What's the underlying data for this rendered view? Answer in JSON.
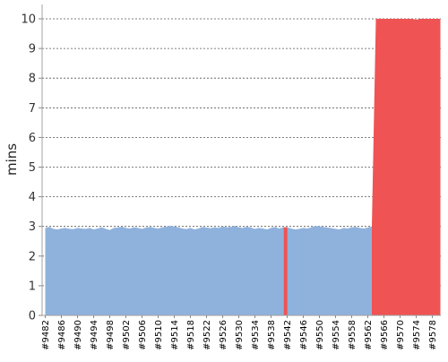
{
  "chart_data": {
    "type": "area",
    "title": "",
    "xlabel": "",
    "ylabel": "mins",
    "ylim": [
      0,
      10
    ],
    "yticks": [
      0,
      1,
      2,
      3,
      4,
      5,
      6,
      7,
      8,
      9,
      10
    ],
    "xticks": [
      "#9482",
      "#9486",
      "#9490",
      "#9494",
      "#9498",
      "#9502",
      "#9506",
      "#9510",
      "#9514",
      "#9518",
      "#9522",
      "#9526",
      "#9530",
      "#9534",
      "#9538",
      "#9542",
      "#9546",
      "#9550",
      "#9554",
      "#9558",
      "#9562",
      "#9566",
      "#9570",
      "#9574",
      "#9578"
    ],
    "grid": true,
    "legend": "none",
    "build_range": [
      9482,
      9580
    ],
    "series": [
      {
        "status": "success",
        "color": "#8fb2dc",
        "points": [
          [
            9482,
            2.95
          ],
          [
            9483,
            2.98
          ],
          [
            9484,
            2.92
          ],
          [
            9485,
            2.9
          ],
          [
            9486,
            2.93
          ],
          [
            9487,
            2.95
          ],
          [
            9488,
            2.92
          ],
          [
            9489,
            2.91
          ],
          [
            9490,
            2.95
          ],
          [
            9491,
            2.93
          ],
          [
            9492,
            2.92
          ],
          [
            9493,
            2.95
          ],
          [
            9494,
            2.9
          ],
          [
            9495,
            2.93
          ],
          [
            9496,
            2.97
          ],
          [
            9497,
            2.92
          ],
          [
            9498,
            2.88
          ],
          [
            9499,
            2.95
          ],
          [
            9500,
            2.96
          ],
          [
            9501,
            2.99
          ],
          [
            9502,
            2.95
          ],
          [
            9503,
            2.93
          ],
          [
            9504,
            2.97
          ],
          [
            9505,
            2.95
          ],
          [
            9506,
            2.92
          ],
          [
            9507,
            2.96
          ],
          [
            9508,
            2.98
          ],
          [
            9509,
            2.95
          ],
          [
            9510,
            2.93
          ],
          [
            9511,
            2.97
          ],
          [
            9512,
            2.99
          ],
          [
            9513,
            3.02
          ],
          [
            9514,
            3.0
          ],
          [
            9515,
            2.97
          ],
          [
            9516,
            2.93
          ],
          [
            9517,
            2.91
          ],
          [
            9518,
            2.95
          ],
          [
            9519,
            2.9
          ],
          [
            9520,
            2.93
          ],
          [
            9521,
            2.98
          ],
          [
            9522,
            2.96
          ],
          [
            9523,
            2.94
          ],
          [
            9524,
            2.97
          ],
          [
            9525,
            2.95
          ],
          [
            9526,
            3.0
          ],
          [
            9527,
            2.97
          ],
          [
            9528,
            2.98
          ],
          [
            9529,
            3.02
          ],
          [
            9530,
            2.97
          ],
          [
            9531,
            2.95
          ],
          [
            9532,
            2.99
          ],
          [
            9533,
            2.96
          ],
          [
            9534,
            2.92
          ],
          [
            9535,
            2.95
          ],
          [
            9536,
            2.93
          ],
          [
            9537,
            2.9
          ],
          [
            9538,
            2.95
          ],
          [
            9539,
            2.98
          ],
          [
            9540,
            2.93
          ],
          [
            9541,
            2.97
          ],
          [
            9542,
            2.97
          ],
          [
            9543,
            2.93
          ],
          [
            9544,
            2.9
          ],
          [
            9545,
            2.92
          ],
          [
            9546,
            2.95
          ],
          [
            9547,
            2.93
          ],
          [
            9548,
            2.97
          ],
          [
            9549,
            3.02
          ],
          [
            9550,
            3.0
          ],
          [
            9551,
            2.98
          ],
          [
            9552,
            2.96
          ],
          [
            9553,
            2.94
          ],
          [
            9554,
            2.92
          ],
          [
            9555,
            2.9
          ],
          [
            9556,
            2.95
          ],
          [
            9557,
            2.93
          ],
          [
            9558,
            2.97
          ],
          [
            9559,
            2.98
          ],
          [
            9560,
            2.95
          ],
          [
            9561,
            2.93
          ],
          [
            9562,
            2.96
          ],
          [
            9563,
            3.0
          ]
        ]
      },
      {
        "status": "failed",
        "color": "#f05353",
        "points": [
          [
            9563,
            3.0
          ],
          [
            9564,
            10.0
          ],
          [
            9565,
            10.0
          ],
          [
            9566,
            10.0
          ],
          [
            9567,
            10.0
          ],
          [
            9568,
            10.0
          ],
          [
            9569,
            10.0
          ],
          [
            9570,
            10.0
          ],
          [
            9571,
            10.0
          ],
          [
            9572,
            10.0
          ],
          [
            9573,
            10.0
          ],
          [
            9574,
            9.97
          ],
          [
            9575,
            10.0
          ],
          [
            9576,
            10.0
          ],
          [
            9577,
            10.0
          ],
          [
            9578,
            10.0
          ],
          [
            9579,
            10.0
          ],
          [
            9580,
            10.0
          ]
        ],
        "spikes": [
          [
            9541.6,
            2.97
          ]
        ]
      }
    ]
  }
}
